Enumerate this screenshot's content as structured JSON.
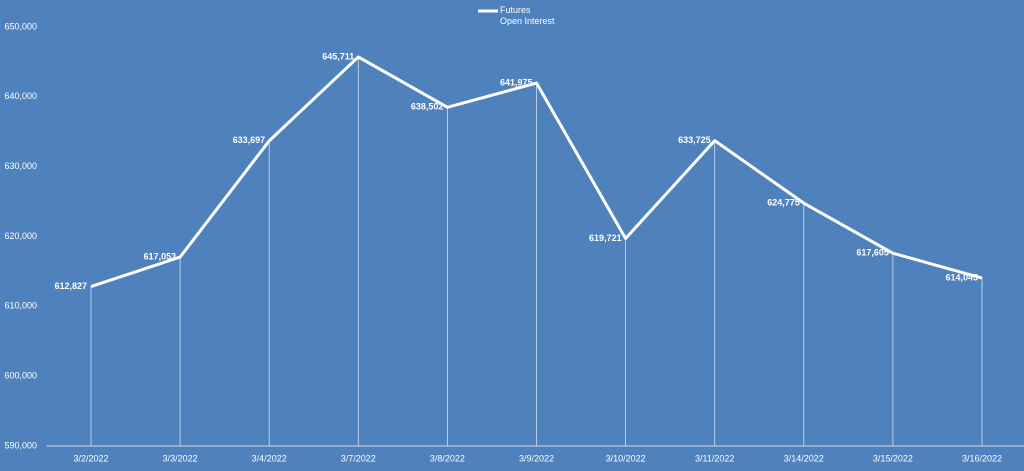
{
  "chart_data": {
    "type": "line",
    "categories": [
      "3/2/2022",
      "3/3/2022",
      "3/4/2022",
      "3/7/2022",
      "3/8/2022",
      "3/9/2022",
      "3/10/2022",
      "3/11/2022",
      "3/14/2022",
      "3/15/2022",
      "3/16/2022"
    ],
    "series": [
      {
        "name": "Futures Open Interest",
        "color": "#ffffff",
        "values": [
          612827,
          617053,
          633697,
          645711,
          638502,
          641975,
          619721,
          633725,
          624775,
          617605,
          614045
        ],
        "value_labels": [
          "612,827",
          "617,053",
          "633,697",
          "645,711",
          "638,502",
          "641,975",
          "619,721",
          "633,725",
          "624,775",
          "617,605",
          "614,045"
        ]
      }
    ],
    "ylim": [
      590000,
      650000
    ],
    "yticks": [
      {
        "value": 590000,
        "label": "590,000"
      },
      {
        "value": 600000,
        "label": "600,000"
      },
      {
        "value": 610000,
        "label": "610,000"
      },
      {
        "value": 620000,
        "label": "620,000"
      },
      {
        "value": 630000,
        "label": "630,000"
      },
      {
        "value": 640000,
        "label": "640,000"
      },
      {
        "value": 650000,
        "label": "650,000"
      }
    ],
    "grid": false,
    "drop_lines": true,
    "legend": "top"
  }
}
